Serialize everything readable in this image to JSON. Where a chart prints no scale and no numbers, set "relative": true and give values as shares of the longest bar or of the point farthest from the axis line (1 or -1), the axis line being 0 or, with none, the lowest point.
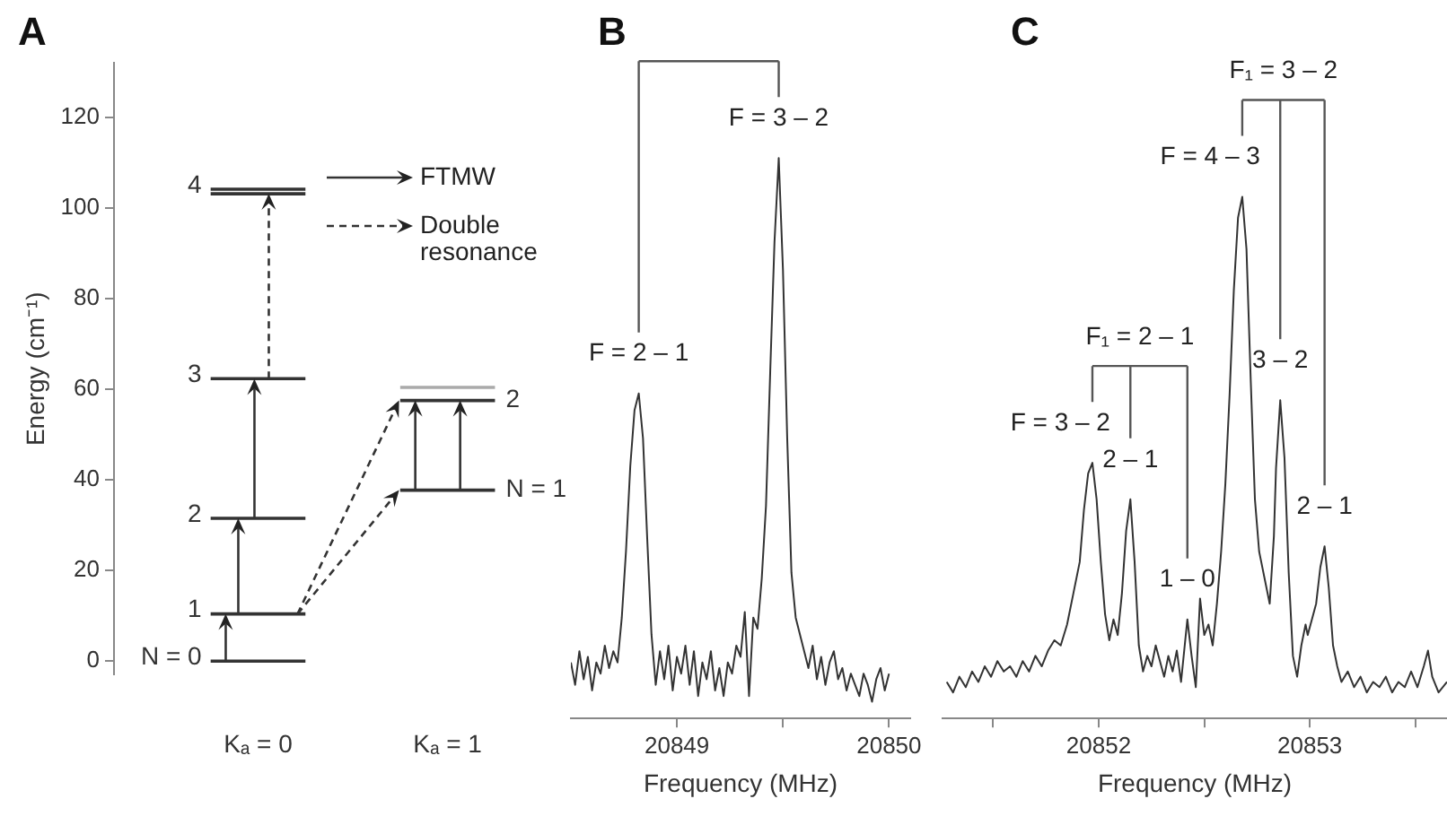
{
  "chart_data": [
    {
      "type": "line",
      "title": "A",
      "ylabel": "Energy (cm⁻¹)",
      "categories": [
        null,
        "Kₐ = 0",
        null,
        null,
        null,
        "Kₐ = 1",
        null
      ],
      "ylim": [
        -3,
        132
      ],
      "yticks": [
        0,
        20,
        40,
        60,
        80,
        100,
        120
      ],
      "grid": false,
      "marker": "none",
      "annotations": [
        "FTMW",
        "Double resonance"
      ],
      "series": [
        {
          "name": "N = 0",
          "color": "#333333",
          "values": [
            0,
            0,
            0,
            null,
            null,
            null,
            null
          ]
        },
        {
          "name": "1",
          "color": "#333333",
          "values": [
            10.4,
            10.4,
            10.4,
            null,
            null,
            null,
            null
          ]
        },
        {
          "name": "2",
          "color": "#333333",
          "values": [
            31.5,
            31.5,
            31.5,
            null,
            null,
            null,
            null
          ]
        },
        {
          "name": "3",
          "color": "#333333",
          "values": [
            62.3,
            62.3,
            62.3,
            null,
            null,
            null,
            null
          ]
        },
        {
          "name": "4",
          "color": "#333333",
          "values": [
            104.1,
            104.1,
            104.1,
            null,
            null,
            null,
            null
          ]
        },
        {
          "color": "#333333",
          "values": [
            103.1,
            103.1,
            103.1,
            null,
            null,
            null,
            null
          ]
        },
        {
          "name": "N = 1",
          "color": "#333333",
          "values": [
            null,
            null,
            null,
            null,
            37.7,
            37.7,
            37.7
          ]
        },
        {
          "name": "2",
          "color": "#333333",
          "values": [
            null,
            null,
            null,
            null,
            57.5,
            57.5,
            57.5
          ]
        },
        {
          "color": "#aaaaaa",
          "values": [
            null,
            null,
            null,
            null,
            60.4,
            60.4,
            60.4
          ]
        }
      ]
    },
    {
      "type": "line",
      "title": "B",
      "xlabel": "Frequency (MHz)",
      "relative": true,
      "xlim": [
        20848.5,
        20850.1
      ],
      "xticks": [
        20849,
        {
          "value": 20849.5,
          "label": null
        },
        20850
      ],
      "marker": "none",
      "color": "#333333",
      "x": [
        20848.5,
        20848.52,
        20848.54,
        20848.56,
        20848.58,
        20848.6,
        20848.62,
        20848.64,
        20848.66,
        20848.68,
        20848.7,
        20848.72,
        20848.74,
        20848.76,
        20848.78,
        20848.8,
        20848.82,
        20848.84,
        20848.86,
        20848.88,
        20848.9,
        20848.92,
        20848.94,
        20848.96,
        20848.98,
        20849.0,
        20849.02,
        20849.04,
        20849.06,
        20849.08,
        20849.1,
        20849.12,
        20849.14,
        20849.16,
        20849.18,
        20849.2,
        20849.22,
        20849.24,
        20849.26,
        20849.28,
        20849.3,
        20849.32,
        20849.34,
        20849.36,
        20849.38,
        20849.4,
        20849.42,
        20849.44,
        20849.46,
        20849.48,
        20849.5,
        20849.52,
        20849.54,
        20849.56,
        20849.58,
        20849.6,
        20849.62,
        20849.64,
        20849.66,
        20849.68,
        20849.7,
        20849.72,
        20849.74,
        20849.76,
        20849.78,
        20849.8,
        20849.82,
        20849.84,
        20849.86,
        20849.88,
        20849.9,
        20849.92,
        20849.94,
        20849.96,
        20849.98,
        20850.0
      ],
      "values": [
        0.1,
        0.06,
        0.12,
        0.07,
        0.11,
        0.05,
        0.1,
        0.08,
        0.13,
        0.09,
        0.12,
        0.1,
        0.18,
        0.3,
        0.45,
        0.55,
        0.58,
        0.5,
        0.32,
        0.15,
        0.06,
        0.12,
        0.07,
        0.13,
        0.05,
        0.11,
        0.08,
        0.13,
        0.06,
        0.12,
        0.04,
        0.1,
        0.07,
        0.12,
        0.05,
        0.09,
        0.04,
        0.1,
        0.08,
        0.13,
        0.11,
        0.19,
        0.04,
        0.18,
        0.16,
        0.25,
        0.38,
        0.62,
        0.85,
        1.0,
        0.8,
        0.5,
        0.26,
        0.18,
        0.15,
        0.12,
        0.09,
        0.13,
        0.07,
        0.11,
        0.06,
        0.1,
        0.12,
        0.07,
        0.09,
        0.05,
        0.08,
        0.06,
        0.04,
        0.08,
        0.06,
        0.03,
        0.07,
        0.09,
        0.05,
        0.08
      ],
      "annotations": [
        {
          "text": "F = 2 – 1",
          "x": 20848.82,
          "y": 0.58
        },
        {
          "text": "F = 3 – 2",
          "x": 20849.48,
          "y": 1.0
        }
      ]
    },
    {
      "type": "line",
      "title": "C",
      "xlabel": "Frequency (MHz)",
      "relative": true,
      "xlim": [
        20851.26,
        20853.65
      ],
      "xticks": [
        {
          "value": 20851.5,
          "label": null
        },
        20852,
        {
          "value": 20852.5,
          "label": null
        },
        20853,
        {
          "value": 20853.5,
          "label": null
        }
      ],
      "marker": "none",
      "color": "#333333",
      "x": [
        20851.28,
        20851.31,
        20851.34,
        20851.37,
        20851.4,
        20851.43,
        20851.46,
        20851.49,
        20851.52,
        20851.55,
        20851.58,
        20851.61,
        20851.64,
        20851.67,
        20851.7,
        20851.73,
        20851.76,
        20851.79,
        20851.82,
        20851.85,
        20851.88,
        20851.91,
        20851.93,
        20851.95,
        20851.97,
        20851.99,
        20852.01,
        20852.03,
        20852.05,
        20852.07,
        20852.09,
        20852.11,
        20852.13,
        20852.15,
        20852.17,
        20852.19,
        20852.21,
        20852.23,
        20852.25,
        20852.27,
        20852.29,
        20852.31,
        20852.33,
        20852.35,
        20852.37,
        20852.39,
        20852.41,
        20852.42,
        20852.44,
        20852.46,
        20852.48,
        20852.5,
        20852.52,
        20852.54,
        20852.56,
        20852.58,
        20852.6,
        20852.62,
        20852.64,
        20852.66,
        20852.68,
        20852.7,
        20852.72,
        20852.74,
        20852.76,
        20852.77,
        20852.79,
        20852.81,
        20852.83,
        20852.84,
        20852.86,
        20852.88,
        20852.9,
        20852.92,
        20852.94,
        20852.96,
        20852.98,
        20852.99,
        20853.01,
        20853.03,
        20853.05,
        20853.07,
        20853.09,
        20853.11,
        20853.13,
        20853.15,
        20853.18,
        20853.21,
        20853.24,
        20853.27,
        20853.3,
        20853.33,
        20853.36,
        20853.39,
        20853.42,
        20853.45,
        20853.48,
        20853.51,
        20853.54,
        20853.56,
        20853.58,
        20853.61,
        20853.65
      ],
      "values": [
        0.07,
        0.05,
        0.08,
        0.06,
        0.09,
        0.07,
        0.1,
        0.08,
        0.11,
        0.09,
        0.1,
        0.08,
        0.11,
        0.09,
        0.12,
        0.1,
        0.13,
        0.15,
        0.14,
        0.18,
        0.24,
        0.3,
        0.4,
        0.47,
        0.49,
        0.42,
        0.3,
        0.2,
        0.15,
        0.19,
        0.16,
        0.24,
        0.36,
        0.42,
        0.3,
        0.14,
        0.09,
        0.12,
        0.1,
        0.14,
        0.11,
        0.08,
        0.12,
        0.09,
        0.13,
        0.07,
        0.15,
        0.19,
        0.12,
        0.06,
        0.23,
        0.16,
        0.18,
        0.14,
        0.22,
        0.32,
        0.45,
        0.62,
        0.82,
        0.96,
        1.0,
        0.9,
        0.65,
        0.42,
        0.32,
        0.3,
        0.26,
        0.22,
        0.35,
        0.48,
        0.61,
        0.5,
        0.28,
        0.12,
        0.08,
        0.14,
        0.18,
        0.16,
        0.19,
        0.22,
        0.29,
        0.33,
        0.25,
        0.14,
        0.1,
        0.07,
        0.09,
        0.06,
        0.08,
        0.05,
        0.07,
        0.06,
        0.08,
        0.05,
        0.07,
        0.06,
        0.09,
        0.06,
        0.1,
        0.13,
        0.08,
        0.05,
        0.07
      ],
      "annotations": [
        "F₁ = 2 – 1",
        {
          "text": "F = 3 – 2",
          "x": 20851.97,
          "y": 0.49
        },
        {
          "text": "2 – 1",
          "x": 20852.15,
          "y": 0.42
        },
        {
          "text": "1 – 0",
          "x": 20852.42,
          "y": 0.19
        },
        "F₁ = 3 – 2",
        {
          "text": "F = 4 – 3",
          "x": 20852.68,
          "y": 1.0
        },
        {
          "text": "3 – 2",
          "x": 20852.86,
          "y": 0.61
        },
        {
          "text": "2 – 1",
          "x": 20853.07,
          "y": 0.33
        }
      ]
    }
  ]
}
